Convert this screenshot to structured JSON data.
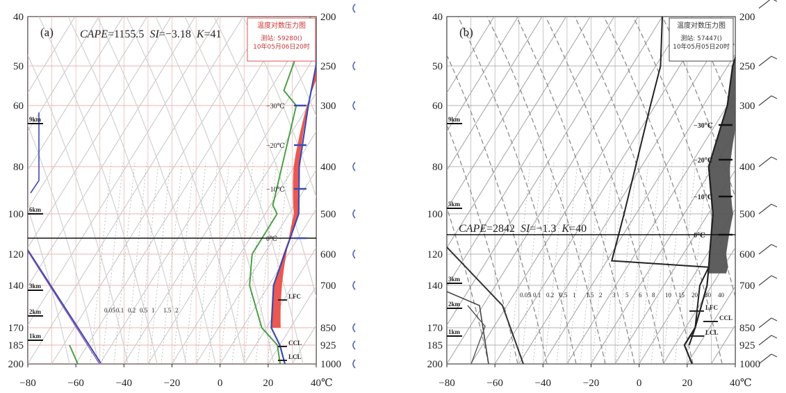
{
  "chart_data": [
    {
      "type": "line",
      "panel_label": "(a)",
      "indices_text": {
        "cape_label": "CAPE",
        "cape_value": "=1155.5",
        "si_label": "SI",
        "si_value": "=−3.18",
        "k_label": "K",
        "k_value": "=41"
      },
      "box_title": "温度对数压力图",
      "box_station": "测站: 59280()",
      "box_time": "10年05月06日20时",
      "x_ticks": [
        "−80",
        "−60",
        "−40",
        "−20",
        "0",
        "20",
        "40℃"
      ],
      "x_tick_values": [
        -80,
        -60,
        -40,
        -20,
        0,
        20,
        40
      ],
      "left_ticks": [
        "40",
        "50",
        "60",
        "80",
        "100",
        "120",
        "140",
        "170",
        "185",
        "200"
      ],
      "right_ticks": [
        "200",
        "250",
        "300",
        "400",
        "500",
        "600",
        "700",
        "850",
        "925",
        "1000"
      ],
      "height_marks": [
        "9km",
        "6km",
        "3km",
        "2km",
        "1km"
      ],
      "height_values_km": [
        9,
        6,
        3,
        2,
        1
      ],
      "isotherm_labels": [
        "−30℃",
        "−20℃",
        "−10℃",
        "0℃"
      ],
      "level_labels": [
        "LFC",
        "CCL",
        "LCL"
      ],
      "mixing_ratio_labels": [
        "0.05",
        "0.1",
        "0.2",
        "0.5",
        "1",
        "1.5",
        "2"
      ],
      "xlim": [
        -80,
        40
      ],
      "temperature": [
        [
          27,
          1000
        ],
        [
          20,
          925
        ],
        [
          12,
          850
        ],
        [
          2,
          700
        ],
        [
          -6,
          500
        ],
        [
          -18,
          400
        ],
        [
          -30,
          300
        ],
        [
          -37,
          250
        ],
        [
          -49,
          200
        ]
      ],
      "dewpoint": [
        [
          25,
          1000
        ],
        [
          19,
          925
        ],
        [
          8,
          850
        ],
        [
          -8,
          700
        ],
        [
          -15,
          600
        ],
        [
          -15,
          500
        ],
        [
          -19,
          480
        ],
        [
          -35,
          300
        ],
        [
          -44,
          280
        ],
        [
          -52,
          200
        ]
      ],
      "parcel": [
        [
          20,
          925
        ],
        [
          13,
          850
        ],
        [
          3,
          700
        ],
        [
          -3,
          600
        ],
        [
          -10,
          500
        ],
        [
          -22,
          400
        ],
        [
          -32,
          300
        ],
        [
          -36,
          250
        ],
        [
          -44,
          200
        ]
      ],
      "cape_fill_color": "#e8473f",
      "temperature_color": "#3d4ab0",
      "dewpoint_color": "#4aa046",
      "grid_color": "#e89a9a",
      "gray_temperature": [
        [
          -48,
          185
        ],
        [
          -80,
          120
        ]
      ],
      "height_profile_color": "#3d4ab0"
    },
    {
      "type": "line",
      "panel_label": "(b)",
      "indices_text": {
        "cape_label": "CAPE",
        "cape_value": "=2842",
        "si_label": "SI",
        "si_value": "=−1.3",
        "k_label": "K",
        "k_value": "=40"
      },
      "box_title": "温度对数压力图",
      "box_station": "测站: 57447()",
      "box_time": "10年05月05日20时",
      "x_ticks": [
        "−80",
        "−60",
        "−40",
        "−20",
        "0",
        "20",
        "40℃"
      ],
      "x_tick_values": [
        -80,
        -60,
        -40,
        -20,
        0,
        20,
        40
      ],
      "left_ticks": [
        "40",
        "50",
        "60",
        "80",
        "100",
        "120",
        "140",
        "170",
        "185",
        "200"
      ],
      "right_ticks": [
        "200",
        "250",
        "300",
        "400",
        "500",
        "600",
        "700",
        "850",
        "925",
        "1000"
      ],
      "height_marks": [
        "9km",
        "5km",
        "3km",
        "2km",
        "1km"
      ],
      "height_values_km": [
        9,
        5,
        3,
        2,
        1
      ],
      "isotherm_labels": [
        "−30℃",
        "−20℃",
        "−10℃",
        "0℃"
      ],
      "level_labels": [
        "LFC",
        "CCL",
        "LCL"
      ],
      "mixing_ratio_labels": [
        "0.05",
        "0.1",
        "0.2",
        "0.5",
        "1",
        "1.5",
        "2",
        "3",
        "5",
        "6",
        "8",
        "10",
        "15",
        "20",
        "30",
        "40"
      ],
      "xlim": [
        -80,
        40
      ],
      "temperature": [
        [
          22,
          1000
        ],
        [
          14,
          925
        ],
        [
          14,
          850
        ],
        [
          8,
          700
        ],
        [
          4,
          640
        ],
        [
          1,
          600
        ],
        [
          -8,
          500
        ],
        [
          -22,
          400
        ],
        [
          -30,
          300
        ],
        [
          -38,
          250
        ],
        [
          -44,
          200
        ]
      ],
      "dewpoint": [
        [
          16,
          925
        ],
        [
          14,
          850
        ],
        [
          5,
          700
        ],
        [
          4,
          640
        ],
        [
          -38,
          620
        ],
        [
          -45,
          500
        ],
        [
          -62,
          300
        ],
        [
          -68,
          250
        ],
        [
          -80,
          200
        ]
      ],
      "parcel": [
        [
          15,
          850
        ],
        [
          9,
          700
        ],
        [
          7,
          640
        ],
        [
          3,
          600
        ],
        [
          -4,
          500
        ],
        [
          -17,
          400
        ],
        [
          -28,
          300
        ],
        [
          -34,
          250
        ],
        [
          -41,
          200
        ]
      ],
      "cape_fill_color": "#555555",
      "temperature_color": "#222222",
      "dewpoint_color": "#222222",
      "grid_color": "#9a9a9a"
    }
  ]
}
